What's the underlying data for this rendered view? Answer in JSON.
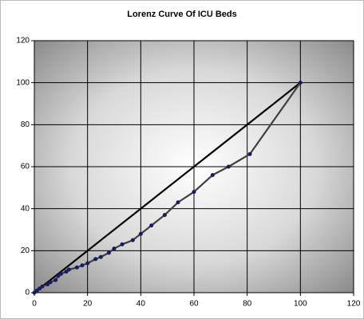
{
  "chart_data": {
    "type": "line",
    "title": "Lorenz Curve Of ICU Beds",
    "xlim": [
      0,
      120
    ],
    "xticks": [
      0,
      20,
      40,
      60,
      80,
      100,
      120
    ],
    "ylim": [
      0,
      120
    ],
    "yticks": [
      0,
      20,
      40,
      60,
      80,
      100,
      120
    ],
    "grid": true,
    "series": [
      {
        "color": "#000000",
        "markers": false,
        "x": [
          0,
          100
        ],
        "values": [
          0,
          100
        ]
      },
      {
        "color": "#404040",
        "marker_color": "#1a1a5e",
        "markers": true,
        "x": [
          0,
          1,
          2,
          3,
          5,
          6,
          8,
          9,
          10,
          12,
          13,
          16,
          18,
          20,
          23,
          25,
          28,
          30,
          33,
          37,
          40,
          44,
          49,
          54,
          60,
          67,
          73,
          81,
          100
        ],
        "values": [
          0,
          1,
          2,
          3,
          4,
          5,
          6,
          8,
          9,
          10,
          11,
          12,
          13,
          14,
          16,
          17,
          19,
          21,
          23,
          25,
          28,
          32,
          37,
          43,
          48,
          56,
          60,
          66,
          100
        ]
      }
    ]
  }
}
